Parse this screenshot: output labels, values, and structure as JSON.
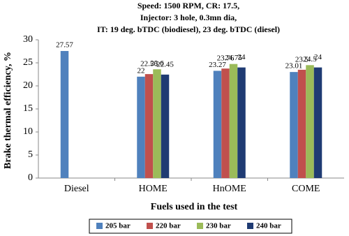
{
  "chart_data": {
    "type": "bar",
    "title": [
      "Speed: 1500 RPM, CR: 17.5,",
      "Injector: 3 hole, 0.3mn dia,",
      "IT: 19 deg. bTDC (biodiesel), 23 deg. bTDC (diesel)"
    ],
    "x_label": "Fuels used in the test",
    "y_label": "Brake thermal efficiency, %",
    "categories": [
      "Diesel",
      "HOME",
      "HnOME",
      "COME"
    ],
    "series": [
      {
        "name": "205 bar",
        "color": "#4f81bd",
        "values": [
          27.57,
          22,
          23.27,
          23.01
        ]
      },
      {
        "name": "220 bar",
        "color": "#c0504d",
        "values": [
          null,
          22.56,
          23.76,
          23.5
        ]
      },
      {
        "name": "230 bar",
        "color": "#9bbb59",
        "values": [
          null,
          23.6,
          24.75,
          24.5
        ]
      },
      {
        "name": "240 bar",
        "color": "#1f3b73",
        "values": [
          null,
          22.45,
          24,
          24
        ]
      }
    ],
    "ylim": [
      0,
      30
    ],
    "yticks": [
      0,
      5,
      10,
      15,
      20,
      25,
      30
    ],
    "grid": false,
    "legend": "bottom"
  }
}
